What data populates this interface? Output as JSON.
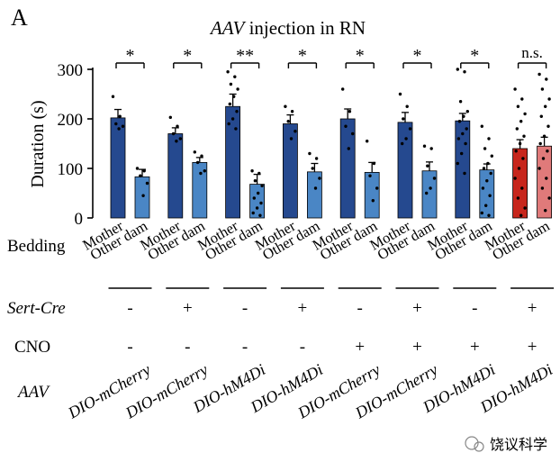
{
  "panel_label": "A",
  "chart_data": {
    "type": "bar",
    "title_italic": "AAV",
    "title_rest": " injection in RN",
    "ylabel": "Duration (s)",
    "ylim": [
      0,
      300
    ],
    "yticks": [
      0,
      100,
      200,
      300
    ],
    "bar_labels": [
      "Mother",
      "Other dam"
    ],
    "row_labels": {
      "bedding": "Bedding",
      "sert": "Sert-Cre",
      "cno": "CNO",
      "aav": "AAV"
    },
    "colors": {
      "mother": "#25498f",
      "other_dam": "#4a86c5",
      "mother_alt": "#c7261c",
      "other_dam_alt": "#e07a7a"
    },
    "groups": [
      {
        "mother": 202,
        "mother_err": 17,
        "other": 83,
        "other_err": 15,
        "sig": "*",
        "sert": "-",
        "cno": "-",
        "aav": "DIO-mCherry",
        "mother_pts": [
          245,
          205,
          190,
          185,
          180
        ],
        "other_pts": [
          100,
          95,
          85,
          70,
          45
        ]
      },
      {
        "mother": 170,
        "mother_err": 12,
        "other": 112,
        "other_err": 10,
        "sig": "*",
        "sert": "+",
        "cno": "-",
        "aav": "DIO-mCherry",
        "mother_pts": [
          203,
          185,
          170,
          160,
          155
        ],
        "other_pts": [
          133,
          125,
          112,
          95,
          90
        ]
      },
      {
        "mother": 225,
        "mother_err": 25,
        "other": 68,
        "other_err": 20,
        "sig": "**",
        "sert": "-",
        "cno": "-",
        "aav": "DIO-hM4Di",
        "mother_pts": [
          295,
          285,
          270,
          260,
          245,
          230,
          215,
          200,
          190,
          180
        ],
        "other_pts": [
          95,
          90,
          75,
          65,
          50,
          40,
          30,
          20,
          10,
          5
        ]
      },
      {
        "mother": 190,
        "mother_err": 18,
        "other": 93,
        "other_err": 17,
        "sig": "*",
        "sert": "+",
        "cno": "-",
        "aav": "DIO-hM4Di",
        "mother_pts": [
          225,
          215,
          195,
          175,
          160
        ],
        "other_pts": [
          130,
          120,
          100,
          80,
          60
        ]
      },
      {
        "mother": 200,
        "mother_err": 20,
        "other": 92,
        "other_err": 20,
        "sig": "*",
        "sert": "-",
        "cno": "+",
        "aav": "DIO-mCherry",
        "mother_pts": [
          260,
          215,
          185,
          170,
          140
        ],
        "other_pts": [
          155,
          110,
          85,
          60,
          35
        ]
      },
      {
        "mother": 193,
        "mother_err": 20,
        "other": 95,
        "other_err": 18,
        "sig": "*",
        "sert": "+",
        "cno": "+",
        "aav": "DIO-mCherry",
        "mother_pts": [
          250,
          225,
          200,
          180,
          160,
          150
        ],
        "other_pts": [
          145,
          140,
          105,
          80,
          60,
          50
        ]
      },
      {
        "mother": 196,
        "mother_err": 15,
        "other": 97,
        "other_err": 12,
        "sig": "*",
        "sert": "-",
        "cno": "+",
        "aav": "DIO-hM4Di",
        "mother_pts": [
          300,
          295,
          235,
          215,
          205,
          195,
          180,
          170,
          160,
          150,
          130,
          110,
          90
        ],
        "other_pts": [
          185,
          160,
          140,
          125,
          110,
          100,
          90,
          75,
          60,
          45,
          25,
          10,
          5
        ]
      },
      {
        "mother": 140,
        "mother_err": 18,
        "other": 145,
        "other_err": 18,
        "sig": "n.s.",
        "sert": "+",
        "cno": "+",
        "aav": "DIO-hM4Di",
        "mother_pts": [
          260,
          240,
          225,
          210,
          195,
          180,
          165,
          150,
          135,
          120,
          100,
          80,
          60,
          40,
          20,
          5
        ],
        "other_pts": [
          290,
          280,
          260,
          240,
          225,
          205,
          185,
          165,
          150,
          135,
          120,
          100,
          80,
          60,
          40,
          15
        ]
      }
    ]
  },
  "watermark": "饶议科学"
}
